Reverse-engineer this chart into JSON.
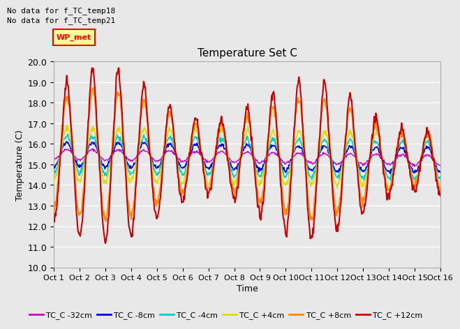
{
  "title": "Temperature Set C",
  "ylabel": "Temperature (C)",
  "xlabel": "Time",
  "annotations": [
    "No data for f_TC_temp18",
    "No data for f_TC_temp21"
  ],
  "wp_met_label": "WP_met",
  "ylim": [
    10.0,
    20.0
  ],
  "yticks": [
    10.0,
    11.0,
    12.0,
    13.0,
    14.0,
    15.0,
    16.0,
    17.0,
    18.0,
    19.0,
    20.0
  ],
  "xtick_labels": [
    "Oct 1",
    "Oct 2",
    "Oct 3",
    "Oct 4",
    "Oct 5",
    "Oct 6",
    "Oct 7",
    "Oct 8",
    "Oct 9",
    "Oct 10",
    "Oct 11",
    "Oct 12",
    "Oct 13",
    "Oct 14",
    "Oct 15",
    "Oct 16"
  ],
  "series_colors": [
    "#cc00cc",
    "#0000dd",
    "#00cccc",
    "#dddd00",
    "#ff8800",
    "#cc0000"
  ],
  "series_labels": [
    "TC_C -32cm",
    "TC_C -8cm",
    "TC_C -4cm",
    "TC_C +4cm",
    "TC_C +8cm",
    "TC_C +12cm"
  ],
  "series_linewidths": [
    1.0,
    1.2,
    1.2,
    1.2,
    1.5,
    1.5
  ],
  "background_color": "#e8e8e8",
  "grid_color": "#ffffff",
  "n_points": 720
}
